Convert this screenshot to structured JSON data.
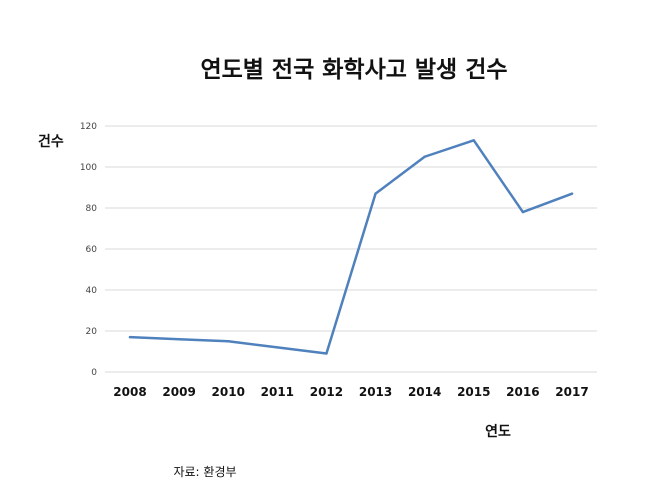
{
  "chart_data": {
    "type": "line",
    "title": "연도별 전국 화학사고 발생 건수",
    "ylabel": "건수",
    "xlabel": "연도",
    "categories": [
      "2008",
      "2009",
      "2010",
      "2011",
      "2012",
      "2013",
      "2014",
      "2015",
      "2016",
      "2017"
    ],
    "series": [
      {
        "values": [
          17,
          16,
          15,
          12,
          9,
          87,
          105,
          113,
          78,
          87
        ]
      }
    ],
    "ylim": [
      0,
      120
    ],
    "yticks": [
      0,
      20,
      40,
      60,
      80,
      100,
      120
    ],
    "grid": true,
    "line_color": "#4f81bd",
    "source": "자료: 환경부"
  }
}
